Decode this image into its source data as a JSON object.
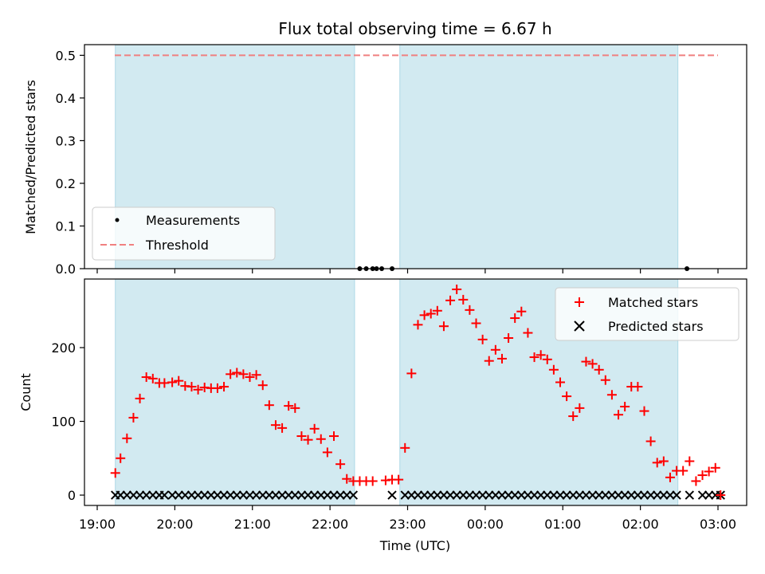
{
  "title": "Flux total observing time = 6.67 h",
  "colors": {
    "shade": "#add8e6",
    "matched": "#ff0000",
    "predicted": "#000000",
    "threshold": "#f08080"
  },
  "chart_data": [
    {
      "type": "scatter",
      "ylabel": "Matched/Predicted stars",
      "ylim": [
        0,
        0.525
      ],
      "yticks": [
        0.0,
        0.1,
        0.2,
        0.3,
        0.4,
        0.5
      ],
      "ytick_labels": [
        "0.0",
        "0.1",
        "0.2",
        "0.3",
        "0.4",
        "0.5"
      ],
      "legend": {
        "placement": "lower-left",
        "entries": [
          "Measurements",
          "Threshold"
        ]
      },
      "threshold": 0.5,
      "measurements": {
        "name": "Measurements",
        "x": [
          "22:23",
          "22:28",
          "22:33",
          "22:36",
          "22:40",
          "22:48",
          "02:36"
        ],
        "y": [
          0,
          0,
          0,
          0,
          0,
          0,
          0
        ]
      }
    },
    {
      "type": "scatter",
      "xlabel": "Time (UTC)",
      "ylabel": "Count",
      "ylim": [
        -14,
        293
      ],
      "yticks": [
        0,
        100,
        200
      ],
      "ytick_labels": [
        "0",
        "100",
        "200"
      ],
      "xticks": [
        "19:00",
        "20:00",
        "21:00",
        "22:00",
        "23:00",
        "00:00",
        "01:00",
        "02:00",
        "03:00"
      ],
      "legend": {
        "placement": "top-right",
        "entries": [
          "Matched stars",
          "Predicted stars"
        ]
      },
      "shaded_intervals": [
        [
          "19:14",
          "22:19"
        ],
        [
          "22:54",
          "02:29"
        ]
      ],
      "series": [
        {
          "name": "Matched stars",
          "marker": "plus",
          "x": [
            "19:14",
            "19:18",
            "19:23",
            "19:28",
            "19:33",
            "19:38",
            "19:43",
            "19:48",
            "19:52",
            "19:58",
            "20:03",
            "20:08",
            "20:13",
            "20:18",
            "20:23",
            "20:28",
            "20:33",
            "20:38",
            "20:43",
            "20:48",
            "20:53",
            "20:58",
            "21:03",
            "21:08",
            "21:13",
            "21:18",
            "21:23",
            "21:28",
            "21:33",
            "21:38",
            "21:43",
            "21:48",
            "21:53",
            "21:58",
            "22:03",
            "22:08",
            "22:13",
            "22:18",
            "22:23",
            "22:28",
            "22:33",
            "22:43",
            "22:48",
            "22:53",
            "22:58",
            "23:03",
            "23:08",
            "23:13",
            "23:18",
            "23:23",
            "23:28",
            "23:33",
            "23:38",
            "23:43",
            "23:48",
            "23:53",
            "23:58",
            "00:03",
            "00:08",
            "00:13",
            "00:18",
            "00:23",
            "00:28",
            "00:33",
            "00:38",
            "00:43",
            "00:48",
            "00:53",
            "00:58",
            "01:03",
            "01:08",
            "01:13",
            "01:18",
            "01:23",
            "01:28",
            "01:33",
            "01:38",
            "01:43",
            "01:48",
            "01:53",
            "01:58",
            "02:03",
            "02:08",
            "02:13",
            "02:18",
            "02:23",
            "02:28",
            "02:33",
            "02:38",
            "02:43",
            "02:48",
            "02:53",
            "02:58",
            "03:02"
          ],
          "y": [
            30,
            50,
            77,
            105,
            131,
            160,
            158,
            152,
            152,
            153,
            155,
            148,
            147,
            143,
            146,
            145,
            145,
            147,
            164,
            166,
            164,
            160,
            163,
            149,
            122,
            95,
            91,
            121,
            118,
            80,
            75,
            90,
            76,
            58,
            80,
            42,
            22,
            19,
            19,
            19,
            19,
            20,
            21,
            21,
            64,
            165,
            231,
            244,
            246,
            250,
            229,
            264,
            279,
            265,
            251,
            233,
            211,
            182,
            197,
            185,
            213,
            240,
            249,
            220,
            187,
            190,
            184,
            170,
            153,
            134,
            107,
            118,
            181,
            178,
            170,
            156,
            136,
            109,
            120,
            147,
            147,
            114,
            73,
            44,
            46,
            24,
            33,
            33,
            46,
            19,
            27,
            32,
            37,
            0
          ]
        },
        {
          "name": "Predicted stars",
          "marker": "x",
          "x": [
            "19:14",
            "19:18",
            "19:23",
            "19:28",
            "19:33",
            "19:38",
            "19:43",
            "19:48",
            "19:52",
            "19:58",
            "20:03",
            "20:08",
            "20:13",
            "20:18",
            "20:23",
            "20:28",
            "20:33",
            "20:38",
            "20:43",
            "20:48",
            "20:53",
            "20:58",
            "21:03",
            "21:08",
            "21:13",
            "21:18",
            "21:23",
            "21:28",
            "21:33",
            "21:38",
            "21:43",
            "21:48",
            "21:53",
            "21:58",
            "22:03",
            "22:08",
            "22:13",
            "22:18",
            "22:48",
            "22:58",
            "23:03",
            "23:08",
            "23:13",
            "23:18",
            "23:23",
            "23:28",
            "23:33",
            "23:38",
            "23:43",
            "23:48",
            "23:53",
            "23:58",
            "00:03",
            "00:08",
            "00:13",
            "00:18",
            "00:23",
            "00:28",
            "00:33",
            "00:38",
            "00:43",
            "00:48",
            "00:53",
            "00:58",
            "01:03",
            "01:08",
            "01:13",
            "01:18",
            "01:23",
            "01:28",
            "01:33",
            "01:38",
            "01:43",
            "01:48",
            "01:53",
            "01:58",
            "02:03",
            "02:08",
            "02:13",
            "02:18",
            "02:23",
            "02:28",
            "02:38",
            "02:48",
            "02:53",
            "02:58",
            "03:02"
          ],
          "y": [
            0,
            0,
            0,
            0,
            0,
            0,
            0,
            0,
            0,
            0,
            0,
            0,
            0,
            0,
            0,
            0,
            0,
            0,
            0,
            0,
            0,
            0,
            0,
            0,
            0,
            0,
            0,
            0,
            0,
            0,
            0,
            0,
            0,
            0,
            0,
            0,
            0,
            0,
            0,
            0,
            0,
            0,
            0,
            0,
            0,
            0,
            0,
            0,
            0,
            0,
            0,
            0,
            0,
            0,
            0,
            0,
            0,
            0,
            0,
            0,
            0,
            0,
            0,
            0,
            0,
            0,
            0,
            0,
            0,
            0,
            0,
            0,
            0,
            0,
            0,
            0,
            0,
            0,
            0,
            0,
            0,
            0,
            0,
            0,
            0,
            0,
            0
          ]
        }
      ]
    }
  ]
}
